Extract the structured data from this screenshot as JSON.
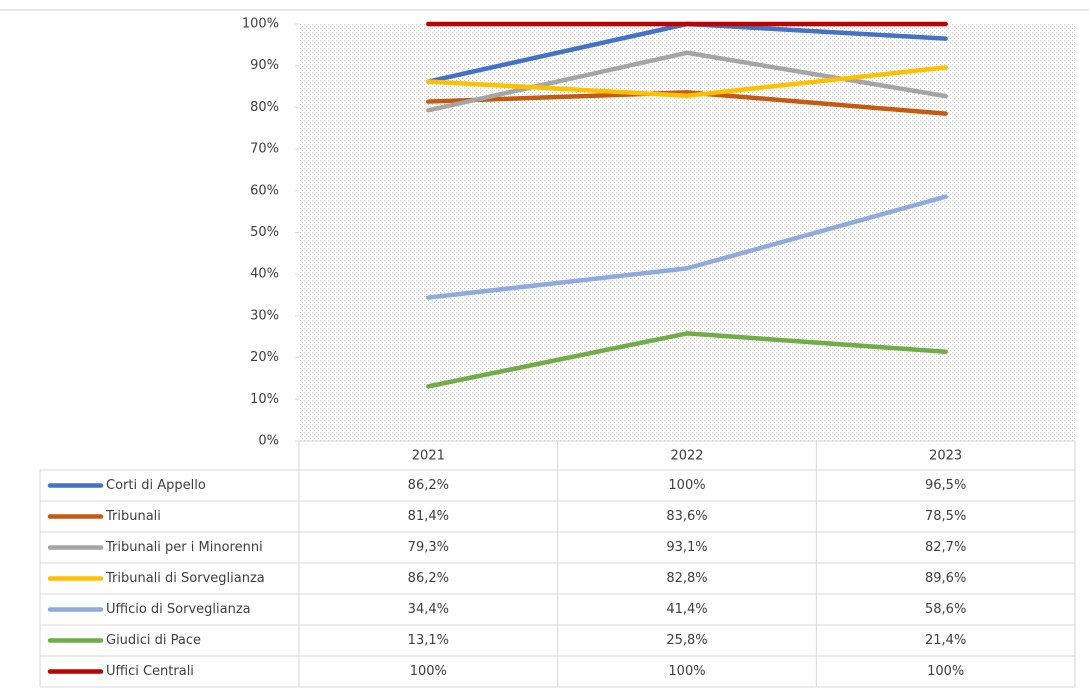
{
  "chart_data": {
    "type": "line",
    "categories": [
      "2021",
      "2022",
      "2023"
    ],
    "ylim": [
      0,
      100
    ],
    "yticks": [
      {
        "value": 0,
        "label": "0%"
      },
      {
        "value": 10,
        "label": "10%"
      },
      {
        "value": 20,
        "label": "20%"
      },
      {
        "value": 30,
        "label": "30%"
      },
      {
        "value": 40,
        "label": "40%"
      },
      {
        "value": 50,
        "label": "50%"
      },
      {
        "value": 60,
        "label": "60%"
      },
      {
        "value": 70,
        "label": "70%"
      },
      {
        "value": 80,
        "label": "80%"
      },
      {
        "value": 90,
        "label": "90%"
      },
      {
        "value": 100,
        "label": "100%"
      }
    ],
    "series": [
      {
        "name": "Corti di Appello",
        "color": "#4472c4",
        "values": [
          86.2,
          100,
          96.5
        ],
        "value_labels": [
          "86,2%",
          "100%",
          "96,5%"
        ]
      },
      {
        "name": "Tribunali",
        "color": "#c55a11",
        "values": [
          81.4,
          83.6,
          78.5
        ],
        "value_labels": [
          "81,4%",
          "83,6%",
          "78,5%"
        ]
      },
      {
        "name": "Tribunali per i Minorenni",
        "color": "#a5a5a5",
        "values": [
          79.3,
          93.1,
          82.7
        ],
        "value_labels": [
          "79,3%",
          "93,1%",
          "82,7%"
        ]
      },
      {
        "name": "Tribunali di Sorveglianza",
        "color": "#ffc000",
        "values": [
          86.2,
          82.8,
          89.6
        ],
        "value_labels": [
          "86,2%",
          "82,8%",
          "89,6%"
        ]
      },
      {
        "name": "Ufficio di Sorveglianza",
        "color": "#8faadc",
        "values": [
          34.4,
          41.4,
          58.6
        ],
        "value_labels": [
          "34,4%",
          "41,4%",
          "58,6%"
        ]
      },
      {
        "name": "Giudici di Pace",
        "color": "#70ad47",
        "values": [
          13.1,
          25.8,
          21.4
        ],
        "value_labels": [
          "13,1%",
          "25,8%",
          "21,4%"
        ]
      },
      {
        "name": "Uffici Centrali",
        "color": "#c00000",
        "values": [
          100,
          100,
          100
        ],
        "value_labels": [
          "100%",
          "100%",
          "100%"
        ]
      }
    ]
  }
}
